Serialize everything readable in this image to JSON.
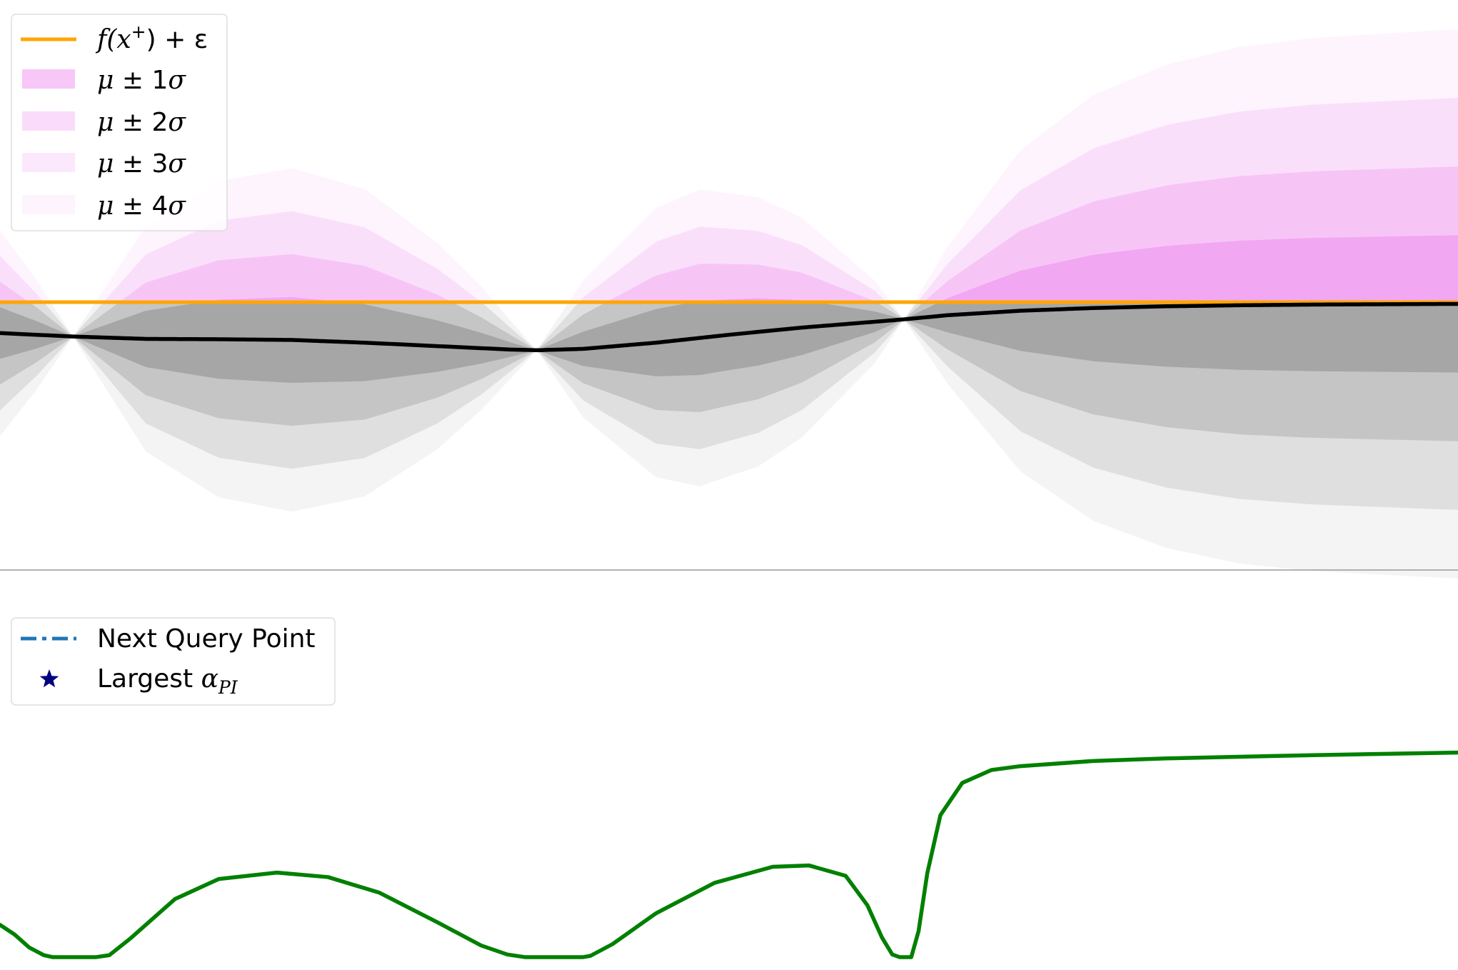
{
  "colors": {
    "background": "#ffffff",
    "mean_line": "#000000",
    "threshold_line": "#ffa500",
    "band_above_threshold": "#ee82ee",
    "band_below_threshold": "#808080",
    "acquisition_line": "#008000",
    "next_query_line": "#1f77b4",
    "largest_marker": "#000080",
    "panel_divider": "#999999"
  },
  "chart_data": [
    {
      "type": "area",
      "panel": "gp-posterior",
      "title": "",
      "xlabel": "",
      "ylabel": "",
      "grid": false,
      "legend_position": "upper-left",
      "xlim": [
        0,
        1
      ],
      "ylim": [
        -0.78,
        0.88
      ],
      "threshold": 0.0,
      "observations": [
        {
          "x": 0.05,
          "y": -0.1
        },
        {
          "x": 0.368,
          "y": -0.14
        },
        {
          "x": 0.62,
          "y": -0.05
        }
      ],
      "mean": {
        "x": [
          0.0,
          0.05,
          0.1,
          0.15,
          0.2,
          0.25,
          0.3,
          0.35,
          0.368,
          0.4,
          0.45,
          0.5,
          0.55,
          0.6,
          0.62,
          0.65,
          0.7,
          0.75,
          0.8,
          0.85,
          0.9,
          0.95,
          1.0
        ],
        "y": [
          -0.09,
          -0.1,
          -0.107,
          -0.108,
          -0.11,
          -0.118,
          -0.128,
          -0.138,
          -0.14,
          -0.136,
          -0.118,
          -0.095,
          -0.074,
          -0.057,
          -0.05,
          -0.038,
          -0.025,
          -0.017,
          -0.012,
          -0.009,
          -0.007,
          -0.006,
          -0.005
        ]
      },
      "sigma": {
        "x": [
          0.0,
          0.025,
          0.05,
          0.1,
          0.15,
          0.2,
          0.25,
          0.3,
          0.33,
          0.368,
          0.4,
          0.45,
          0.48,
          0.52,
          0.55,
          0.6,
          0.62,
          0.65,
          0.7,
          0.75,
          0.8,
          0.85,
          0.9,
          0.95,
          1.0
        ],
        "y": [
          0.075,
          0.04,
          0.0,
          0.082,
          0.115,
          0.125,
          0.112,
          0.075,
          0.045,
          0.0,
          0.05,
          0.098,
          0.108,
          0.098,
          0.08,
          0.03,
          0.0,
          0.05,
          0.117,
          0.155,
          0.176,
          0.188,
          0.194,
          0.197,
          0.2
        ]
      },
      "bands": [
        {
          "label": "μ ± 1σ",
          "k": 1,
          "opacity": 0.45
        },
        {
          "label": "μ ± 2σ",
          "k": 2,
          "opacity": 0.28
        },
        {
          "label": "μ ± 3σ",
          "k": 3,
          "opacity": 0.18
        },
        {
          "label": "μ ± 4σ",
          "k": 4,
          "opacity": 0.09
        }
      ],
      "legend": {
        "threshold": {
          "base": "f(x",
          "sup": "+",
          "tail": ") + ε"
        },
        "bands": [
          {
            "mu": "μ",
            "pm": " ± ",
            "k": "1",
            "sigma": "σ"
          },
          {
            "mu": "μ",
            "pm": " ± ",
            "k": "2",
            "sigma": "σ"
          },
          {
            "mu": "μ",
            "pm": " ± ",
            "k": "3",
            "sigma": "σ"
          },
          {
            "mu": "μ",
            "pm": " ± ",
            "k": "4",
            "sigma": "σ"
          }
        ]
      }
    },
    {
      "type": "line",
      "panel": "acquisition",
      "title": "",
      "xlabel": "",
      "ylabel": "",
      "grid": false,
      "legend_position": "upper-left",
      "xlim": [
        0,
        1
      ],
      "ylim": [
        -0.02,
        0.6
      ],
      "series": [
        {
          "name": "",
          "x": [
            0.0,
            0.01,
            0.02,
            0.03,
            0.036,
            0.05,
            0.066,
            0.075,
            0.09,
            0.12,
            0.15,
            0.19,
            0.225,
            0.26,
            0.3,
            0.33,
            0.348,
            0.36,
            0.38,
            0.4,
            0.405,
            0.42,
            0.45,
            0.49,
            0.53,
            0.555,
            0.58,
            0.595,
            0.605,
            0.612,
            0.617,
            0.62,
            0.622,
            0.625,
            0.63,
            0.636,
            0.645,
            0.66,
            0.68,
            0.7,
            0.75,
            0.8,
            0.9,
            1.0
          ],
          "y": [
            0.05,
            0.035,
            0.015,
            0.003,
            0.0,
            0.0,
            0.0,
            0.003,
            0.03,
            0.09,
            0.121,
            0.131,
            0.124,
            0.1,
            0.054,
            0.018,
            0.004,
            0.0,
            0.0,
            0.0,
            0.002,
            0.02,
            0.068,
            0.115,
            0.14,
            0.142,
            0.126,
            0.08,
            0.03,
            0.004,
            0.0,
            0.0,
            0.0,
            0.0,
            0.04,
            0.13,
            0.22,
            0.27,
            0.29,
            0.296,
            0.304,
            0.308,
            0.313,
            0.317
          ]
        }
      ],
      "legend": [
        {
          "label": "Next Query Point",
          "marker": "dash-dot-line"
        },
        {
          "label_prefix": "Largest ",
          "label_math": "α",
          "label_sub": "PI",
          "marker": "star"
        }
      ]
    }
  ]
}
